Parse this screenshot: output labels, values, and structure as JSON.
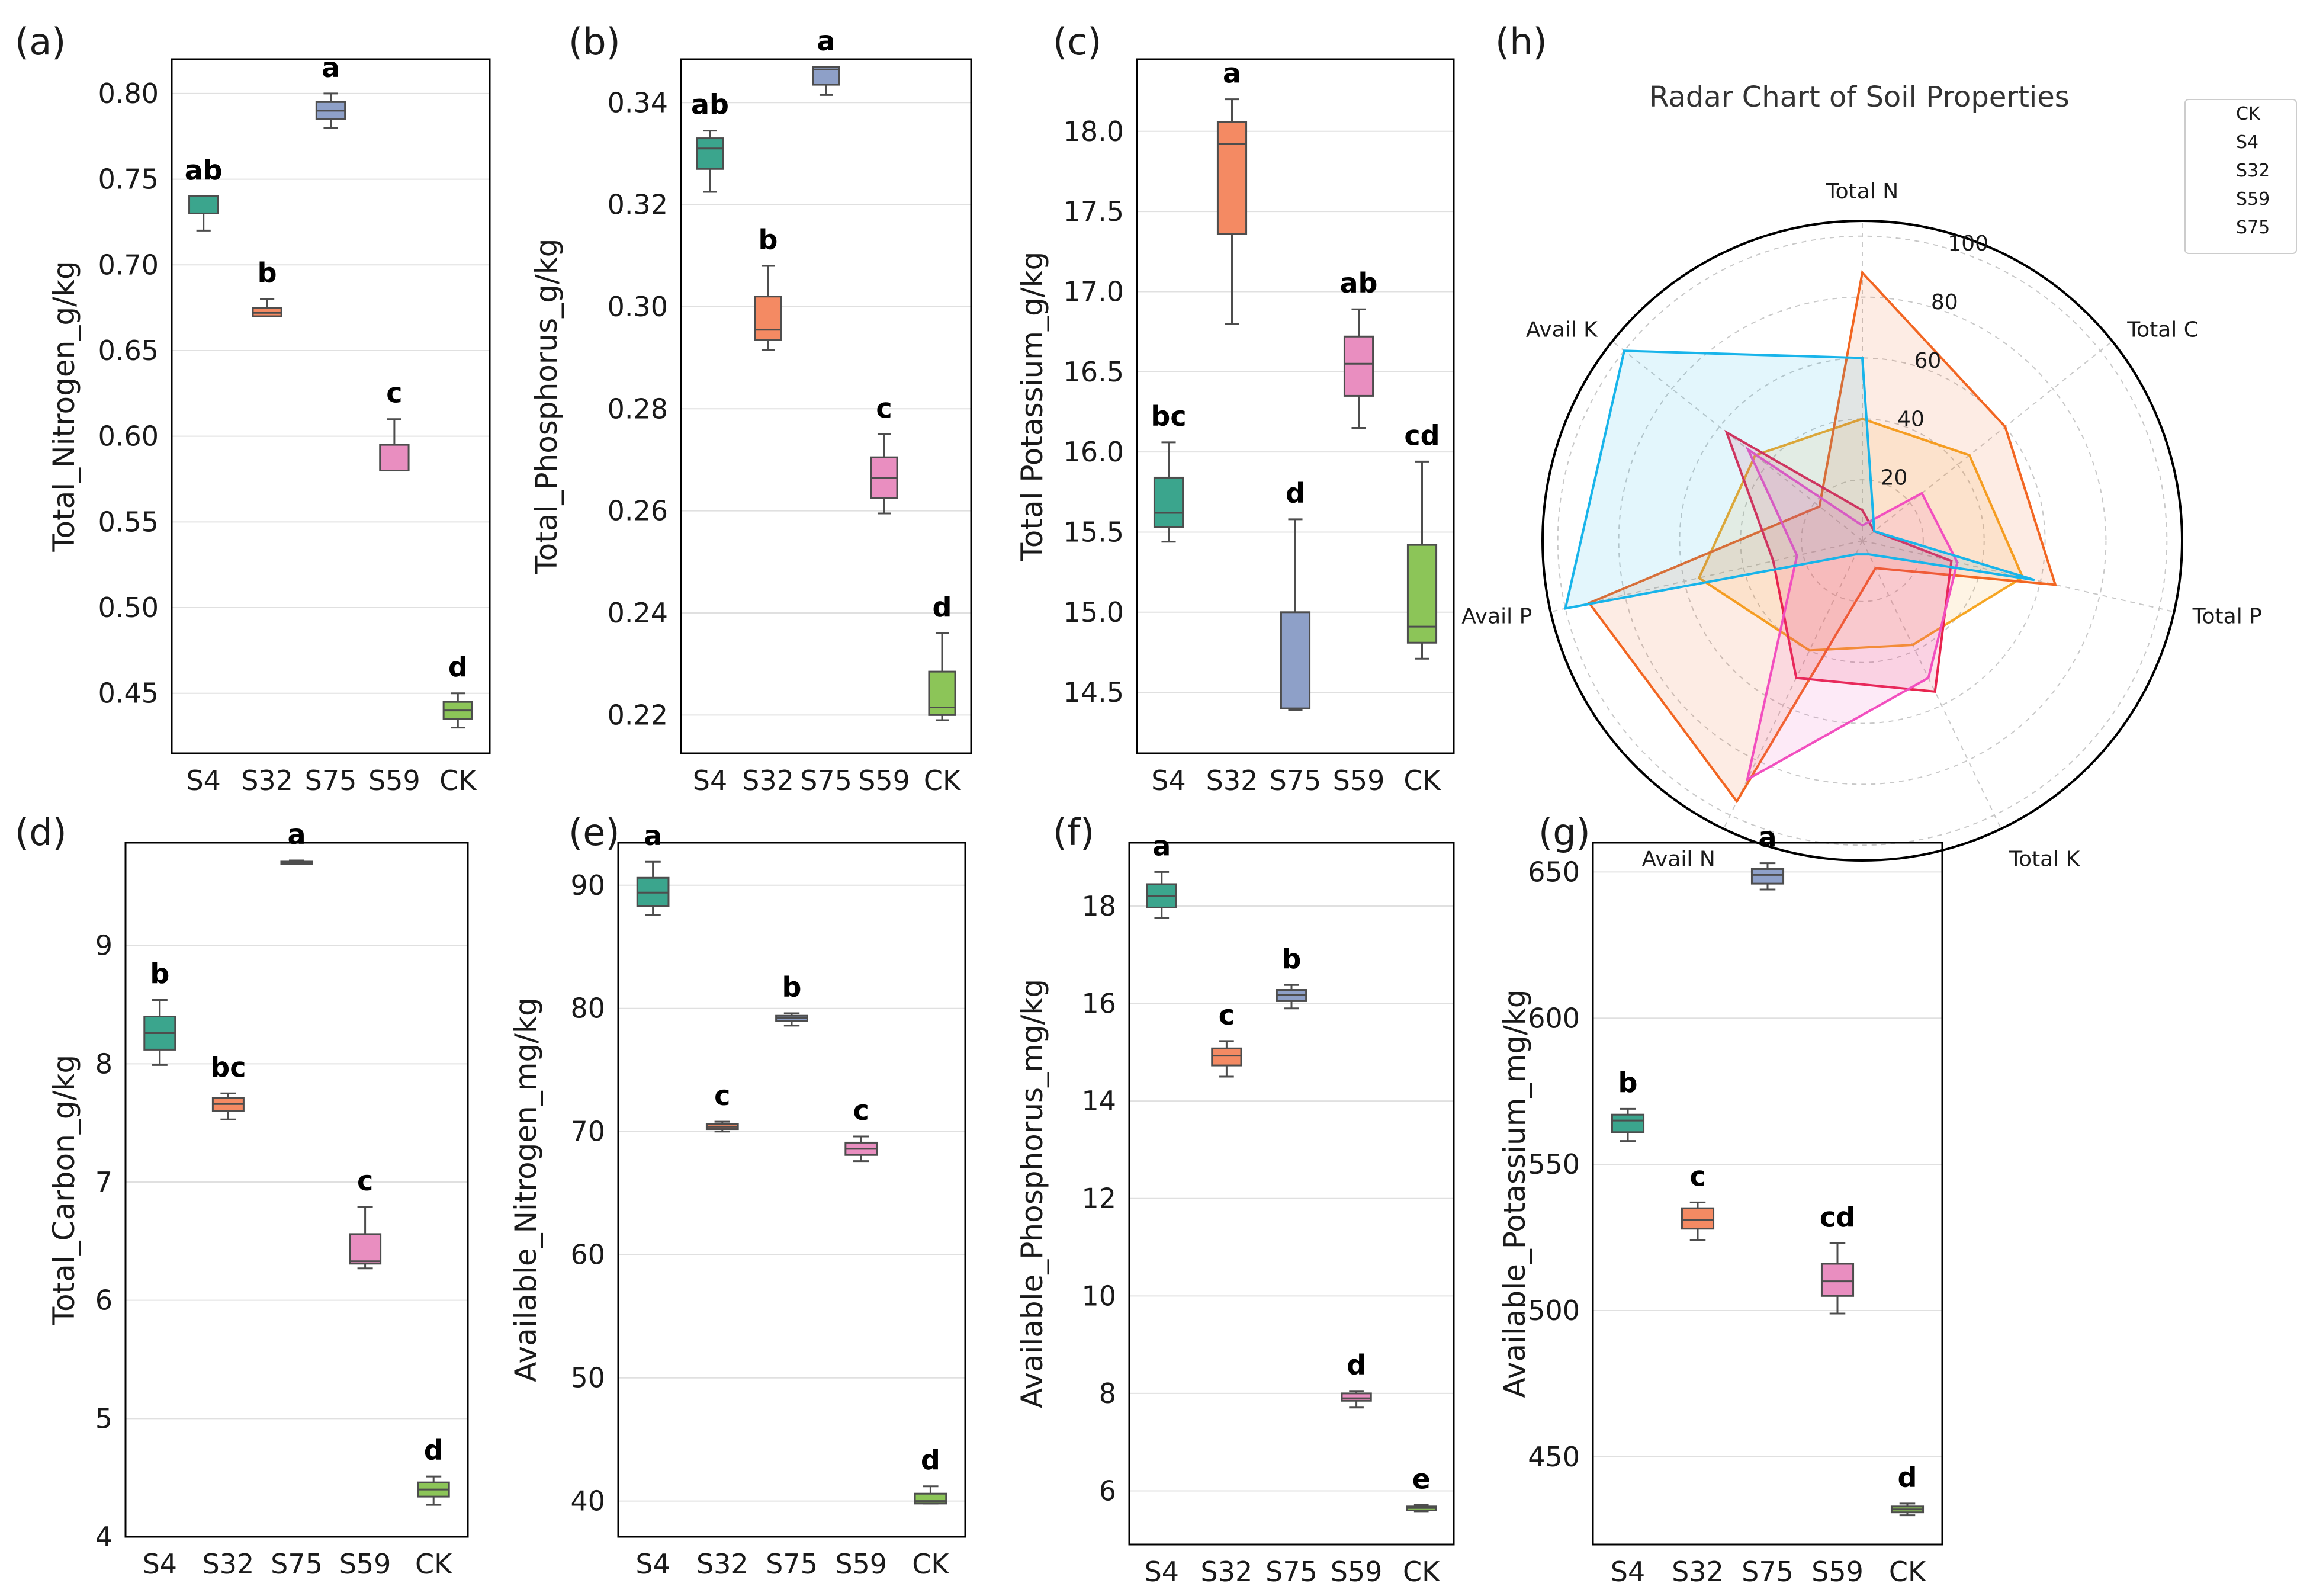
{
  "colors": {
    "S4": "#3ba58d",
    "S32": "#f48a63",
    "S75": "#8ea0c8",
    "S59": "#e98ec0",
    "CK": "#8cc558",
    "radar": {
      "CK": "#f6a623",
      "S4": "#f26622",
      "S32": "#e8244e",
      "S59": "#f24fbf",
      "S75": "#18b4ea"
    }
  },
  "chart_data": [
    {
      "type": "box",
      "panel": "(a)",
      "ylabel": "Total_Nitrogen_g/kg",
      "categories": [
        "S4",
        "S32",
        "S75",
        "S59",
        "CK"
      ],
      "ylim": [
        0.415,
        0.82
      ],
      "yticks": [
        0.45,
        0.5,
        0.55,
        0.6,
        0.65,
        0.7,
        0.75,
        0.8
      ],
      "ytick_labels": [
        "0.45",
        "0.50",
        "0.55",
        "0.60",
        "0.65",
        "0.70",
        "0.75",
        "0.80"
      ],
      "boxes": [
        {
          "min": 0.72,
          "q1": 0.73,
          "median": 0.73,
          "q3": 0.74,
          "max": 0.74
        },
        {
          "min": 0.67,
          "q1": 0.67,
          "median": 0.672,
          "q3": 0.675,
          "max": 0.68
        },
        {
          "min": 0.78,
          "q1": 0.785,
          "median": 0.79,
          "q3": 0.795,
          "max": 0.8
        },
        {
          "min": 0.58,
          "q1": 0.58,
          "median": 0.58,
          "q3": 0.595,
          "max": 0.61
        },
        {
          "min": 0.43,
          "q1": 0.435,
          "median": 0.44,
          "q3": 0.445,
          "max": 0.45
        }
      ],
      "letters": [
        "ab",
        "b",
        "a",
        "c",
        "d"
      ]
    },
    {
      "type": "box",
      "panel": "(b)",
      "ylabel": "Total_Phosphorus_g/kg",
      "categories": [
        "S4",
        "S32",
        "S75",
        "S59",
        "CK"
      ],
      "ylim": [
        0.2125,
        0.3485
      ],
      "yticks": [
        0.22,
        0.24,
        0.26,
        0.28,
        0.3,
        0.32,
        0.34
      ],
      "ytick_labels": [
        "0.22",
        "0.24",
        "0.26",
        "0.28",
        "0.30",
        "0.32",
        "0.34"
      ],
      "boxes": [
        {
          "min": 0.3225,
          "q1": 0.327,
          "median": 0.331,
          "q3": 0.333,
          "max": 0.3345
        },
        {
          "min": 0.2915,
          "q1": 0.2935,
          "median": 0.2955,
          "q3": 0.302,
          "max": 0.308
        },
        {
          "min": 0.3415,
          "q1": 0.3435,
          "median": 0.3465,
          "q3": 0.347,
          "max": 0.347
        },
        {
          "min": 0.2595,
          "q1": 0.2625,
          "median": 0.2665,
          "q3": 0.2705,
          "max": 0.275
        },
        {
          "min": 0.219,
          "q1": 0.22,
          "median": 0.2215,
          "q3": 0.2285,
          "max": 0.236
        }
      ],
      "letters": [
        "ab",
        "b",
        "a",
        "c",
        "d"
      ]
    },
    {
      "type": "box",
      "panel": "(c)",
      "ylabel": "Total Potassium_g/kg",
      "categories": [
        "S4",
        "S32",
        "S75",
        "S59",
        "CK"
      ],
      "ylim": [
        14.12,
        18.45
      ],
      "yticks": [
        14.5,
        15,
        15.5,
        16,
        16.5,
        17,
        17.5,
        18
      ],
      "ytick_labels": [
        "14.5",
        "15.0",
        "15.5",
        "16.0",
        "16.5",
        "17.0",
        "17.5",
        "18.0"
      ],
      "boxes": [
        {
          "min": 15.44,
          "q1": 15.53,
          "median": 15.62,
          "q3": 15.84,
          "max": 16.06
        },
        {
          "min": 16.8,
          "q1": 17.36,
          "median": 17.92,
          "q3": 18.06,
          "max": 18.2
        },
        {
          "min": 14.39,
          "q1": 14.4,
          "median": 14.4,
          "q3": 15.0,
          "max": 15.58
        },
        {
          "min": 16.15,
          "q1": 16.35,
          "median": 16.55,
          "q3": 16.72,
          "max": 16.89
        },
        {
          "min": 14.71,
          "q1": 14.81,
          "median": 14.91,
          "q3": 15.42,
          "max": 15.94
        }
      ],
      "letters": [
        "bc",
        "a",
        "d",
        "ab",
        "cd"
      ]
    },
    {
      "type": "box",
      "panel": "(d)",
      "ylabel": "Total_Carbon_g/kg",
      "categories": [
        "S4",
        "S32",
        "S75",
        "S59",
        "CK"
      ],
      "ylim": [
        4,
        9.87
      ],
      "yticks": [
        4,
        5,
        6,
        7,
        8,
        9
      ],
      "ytick_labels": [
        "4",
        "5",
        "6",
        "7",
        "8",
        "9"
      ],
      "boxes": [
        {
          "min": 7.99,
          "q1": 8.12,
          "median": 8.26,
          "q3": 8.4,
          "max": 8.54
        },
        {
          "min": 7.53,
          "q1": 7.6,
          "median": 7.66,
          "q3": 7.71,
          "max": 7.75
        },
        {
          "min": 9.69,
          "q1": 9.7,
          "median": 9.7,
          "q3": 9.71,
          "max": 9.72
        },
        {
          "min": 6.27,
          "q1": 6.31,
          "median": 6.33,
          "q3": 6.56,
          "max": 6.79
        },
        {
          "min": 4.27,
          "q1": 4.34,
          "median": 4.4,
          "q3": 4.46,
          "max": 4.51
        }
      ],
      "letters": [
        "b",
        "bc",
        "a",
        "c",
        "d"
      ]
    },
    {
      "type": "box",
      "panel": "(e)",
      "ylabel": "Available_Nitrogen_mg/kg",
      "categories": [
        "S4",
        "S32",
        "S75",
        "S59",
        "CK"
      ],
      "ylim": [
        37.1,
        93.45
      ],
      "yticks": [
        40,
        50,
        60,
        70,
        80,
        90
      ],
      "ytick_labels": [
        "40",
        "50",
        "60",
        "70",
        "80",
        "90"
      ],
      "boxes": [
        {
          "min": 87.6,
          "q1": 88.3,
          "median": 89.4,
          "q3": 90.6,
          "max": 91.9
        },
        {
          "min": 70.0,
          "q1": 70.2,
          "median": 70.4,
          "q3": 70.6,
          "max": 70.8
        },
        {
          "min": 78.6,
          "q1": 79.0,
          "median": 79.2,
          "q3": 79.4,
          "max": 79.6
        },
        {
          "min": 67.6,
          "q1": 68.1,
          "median": 68.6,
          "q3": 69.1,
          "max": 69.6
        },
        {
          "min": 39.8,
          "q1": 39.8,
          "median": 40.0,
          "q3": 40.6,
          "max": 41.2
        }
      ],
      "letters": [
        "a",
        "c",
        "b",
        "c",
        "d"
      ]
    },
    {
      "type": "box",
      "panel": "(f)",
      "ylabel": "Available_Phosphorus_mg/kg",
      "categories": [
        "S4",
        "S32",
        "S75",
        "S59",
        "CK"
      ],
      "ylim": [
        4.9,
        19.3
      ],
      "yticks": [
        6,
        8,
        10,
        12,
        14,
        16,
        18
      ],
      "ytick_labels": [
        "6",
        "8",
        "10",
        "12",
        "14",
        "16",
        "18"
      ],
      "boxes": [
        {
          "min": 17.75,
          "q1": 17.97,
          "median": 18.2,
          "q3": 18.45,
          "max": 18.7
        },
        {
          "min": 14.5,
          "q1": 14.73,
          "median": 14.93,
          "q3": 15.08,
          "max": 15.23
        },
        {
          "min": 15.9,
          "q1": 16.05,
          "median": 16.18,
          "q3": 16.28,
          "max": 16.38
        },
        {
          "min": 7.71,
          "q1": 7.85,
          "median": 7.9,
          "q3": 8.0,
          "max": 8.05
        },
        {
          "min": 5.57,
          "q1": 5.6,
          "median": 5.65,
          "q3": 5.68,
          "max": 5.71
        }
      ],
      "letters": [
        "a",
        "c",
        "b",
        "d",
        "e"
      ]
    },
    {
      "type": "box",
      "panel": "(g)",
      "ylabel": "Available_Potassium_mg/kg",
      "categories": [
        "S4",
        "S32",
        "S75",
        "S59",
        "CK"
      ],
      "ylim": [
        420,
        660
      ],
      "yticks": [
        450,
        500,
        550,
        600,
        650
      ],
      "ytick_labels": [
        "450",
        "500",
        "550",
        "600",
        "650"
      ],
      "boxes": [
        {
          "min": 558,
          "q1": 561,
          "median": 565,
          "q3": 567,
          "max": 569
        },
        {
          "min": 524,
          "q1": 528,
          "median": 531,
          "q3": 535,
          "max": 537
        },
        {
          "min": 644,
          "q1": 646,
          "median": 649,
          "q3": 651,
          "max": 653
        },
        {
          "min": 499,
          "q1": 505,
          "median": 510,
          "q3": 516,
          "max": 523
        },
        {
          "min": 430,
          "q1": 431,
          "median": 432,
          "q3": 433,
          "max": 434
        }
      ],
      "letters": [
        "b",
        "c",
        "a",
        "cd",
        "d"
      ]
    },
    {
      "type": "radar",
      "panel": "(h)",
      "title": "Radar Chart of Soil Properties",
      "variables": [
        "Total N",
        "Total C",
        "Total P",
        "Total K",
        "Avail N",
        "Avail P",
        "Avail K"
      ],
      "rlim": [
        0,
        105
      ],
      "rticks": [
        20,
        40,
        60,
        80,
        100
      ],
      "rtick_labels": [
        "20",
        "40",
        "60",
        "80",
        "100"
      ],
      "series": [
        {
          "name": "CK",
          "values": [
            40,
            45,
            54,
            38,
            40,
            55,
            45
          ]
        },
        {
          "name": "S4",
          "values": [
            88,
            60,
            65,
            10,
            95,
            92,
            18
          ]
        },
        {
          "name": "S32",
          "values": [
            10,
            5,
            30,
            55,
            50,
            30,
            57
          ]
        },
        {
          "name": "S59",
          "values": [
            5,
            25,
            32,
            50,
            87,
            22,
            48
          ]
        },
        {
          "name": "S75",
          "values": [
            60,
            5,
            58,
            5,
            5,
            100,
            100
          ]
        }
      ]
    }
  ]
}
